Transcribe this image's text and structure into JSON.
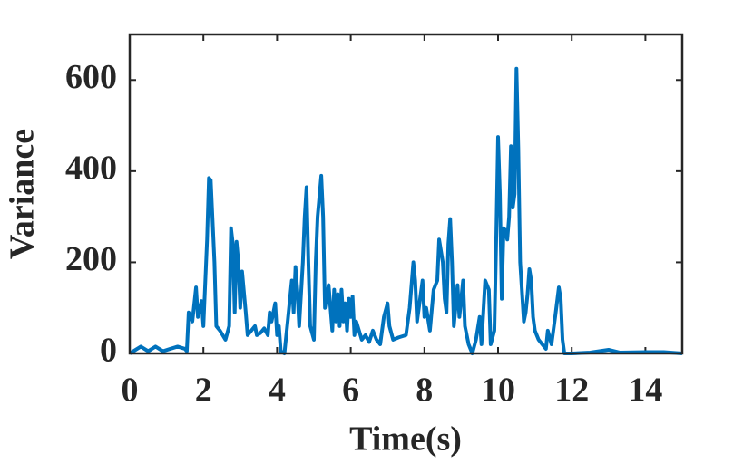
{
  "chart_data": {
    "type": "line",
    "xlabel": "Time(s)",
    "ylabel": "Variance",
    "x": [
      0,
      0.1,
      0.3,
      0.5,
      0.7,
      0.9,
      1.1,
      1.3,
      1.5,
      1.55,
      1.6,
      1.7,
      1.8,
      1.85,
      1.95,
      2.0,
      2.1,
      2.15,
      2.2,
      2.3,
      2.35,
      2.45,
      2.6,
      2.7,
      2.75,
      2.8,
      2.85,
      2.9,
      2.95,
      3.0,
      3.05,
      3.15,
      3.2,
      3.3,
      3.4,
      3.45,
      3.55,
      3.65,
      3.75,
      3.8,
      3.85,
      3.95,
      4.0,
      4.05,
      4.1,
      4.2,
      4.3,
      4.4,
      4.45,
      4.5,
      4.55,
      4.6,
      4.7,
      4.75,
      4.8,
      4.85,
      4.9,
      5.0,
      5.05,
      5.1,
      5.2,
      5.25,
      5.3,
      5.4,
      5.5,
      5.55,
      5.6,
      5.65,
      5.7,
      5.75,
      5.8,
      5.85,
      5.9,
      5.95,
      6.0,
      6.05,
      6.1,
      6.15,
      6.3,
      6.4,
      6.5,
      6.6,
      6.7,
      6.8,
      6.9,
      7.0,
      7.05,
      7.15,
      7.3,
      7.5,
      7.6,
      7.7,
      7.75,
      7.8,
      7.9,
      7.95,
      8.0,
      8.05,
      8.15,
      8.25,
      8.35,
      8.4,
      8.5,
      8.55,
      8.6,
      8.65,
      8.7,
      8.75,
      8.8,
      8.9,
      8.95,
      9.05,
      9.1,
      9.2,
      9.3,
      9.4,
      9.5,
      9.55,
      9.65,
      9.75,
      9.8,
      9.9,
      9.95,
      10.0,
      10.05,
      10.1,
      10.15,
      10.2,
      10.25,
      10.3,
      10.35,
      10.4,
      10.45,
      10.5,
      10.55,
      10.6,
      10.7,
      10.75,
      10.8,
      10.85,
      10.9,
      10.95,
      11.0,
      11.1,
      11.2,
      11.3,
      11.35,
      11.45,
      11.55,
      11.65,
      11.7,
      11.75,
      11.8,
      12,
      12.5,
      13,
      13.3,
      14,
      14.5,
      15
    ],
    "series": [
      {
        "color": "#0072bd",
        "values": [
          0,
          5,
          15,
          5,
          15,
          5,
          10,
          15,
          10,
          5,
          90,
          70,
          145,
          80,
          115,
          60,
          250,
          385,
          380,
          200,
          60,
          50,
          30,
          60,
          275,
          240,
          90,
          245,
          200,
          100,
          180,
          90,
          40,
          50,
          60,
          40,
          45,
          55,
          40,
          90,
          70,
          110,
          40,
          60,
          5,
          0,
          80,
          160,
          90,
          190,
          140,
          60,
          200,
          300,
          365,
          200,
          60,
          30,
          200,
          300,
          390,
          300,
          100,
          150,
          50,
          140,
          70,
          130,
          60,
          140,
          70,
          110,
          50,
          120,
          80,
          125,
          40,
          70,
          30,
          40,
          25,
          50,
          30,
          20,
          80,
          110,
          60,
          30,
          35,
          40,
          100,
          200,
          160,
          70,
          130,
          160,
          80,
          100,
          50,
          140,
          160,
          250,
          200,
          120,
          90,
          240,
          295,
          200,
          60,
          150,
          80,
          160,
          60,
          20,
          0,
          30,
          80,
          20,
          160,
          140,
          20,
          50,
          250,
          475,
          350,
          120,
          275,
          270,
          250,
          300,
          455,
          320,
          350,
          625,
          450,
          200,
          70,
          90,
          130,
          185,
          160,
          80,
          50,
          30,
          20,
          10,
          50,
          20,
          80,
          145,
          120,
          30,
          0,
          0,
          2,
          8,
          2,
          3,
          3,
          0
        ]
      }
    ],
    "xlim": [
      0,
      15
    ],
    "xticks": [
      0,
      2,
      4,
      6,
      8,
      10,
      12,
      14
    ],
    "ylim": [
      0,
      700
    ],
    "yticks": [
      0,
      200,
      400,
      600
    ]
  }
}
